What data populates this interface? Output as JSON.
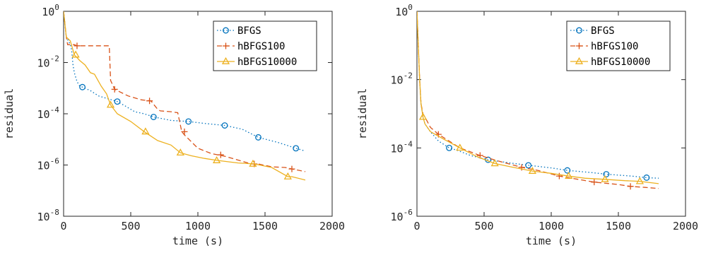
{
  "chart_data": [
    {
      "type": "line",
      "xlabel": "time (s)",
      "ylabel": "residual",
      "xlim": [
        0,
        2000
      ],
      "ylim": [
        1e-08,
        1
      ],
      "yscale": "log",
      "xticks": [
        0,
        500,
        1000,
        1500,
        2000
      ],
      "xtick_labels": [
        "0",
        "500",
        "1000",
        "1500",
        "2000"
      ],
      "yticks": [
        {
          "base": "10",
          "exp": "-8",
          "value": 1e-08
        },
        {
          "base": "10",
          "exp": "-6",
          "value": 1e-06
        },
        {
          "base": "10",
          "exp": "-4",
          "value": 0.0001
        },
        {
          "base": "10",
          "exp": "-2",
          "value": 0.01
        },
        {
          "base": "10",
          "exp": "0",
          "value": 1
        }
      ],
      "grid": false,
      "legend_position": "top-right",
      "series": [
        {
          "name": "BFGS",
          "color": "#0072BD",
          "style": "dotted",
          "marker": "circle",
          "x": [
            0,
            20,
            50,
            60,
            70,
            80,
            100,
            120,
            140,
            200,
            260,
            320,
            400,
            460,
            530,
            600,
            670,
            800,
            930,
            1050,
            1200,
            1330,
            1450,
            1600,
            1730,
            1800
          ],
          "y": [
            1,
            0.1,
            0.05,
            0.03,
            0.008,
            0.004,
            0.0018,
            0.0012,
            0.0011,
            0.0008,
            0.0005,
            0.0004,
            0.0003,
            0.0002,
            0.00012,
            0.0001,
            7.5e-05,
            5.5e-05,
            5e-05,
            4.2e-05,
            3.5e-05,
            2.5e-05,
            1.2e-05,
            7.5e-06,
            4.5e-06,
            3.5e-06
          ],
          "marker_x": [
            140,
            400,
            670,
            930,
            1200,
            1450,
            1730
          ],
          "marker_y": [
            0.0011,
            0.0003,
            7.5e-05,
            5e-05,
            3.5e-05,
            1.2e-05,
            4.5e-06
          ]
        },
        {
          "name": "hBFGS100",
          "color": "#D95319",
          "style": "dashed",
          "marker": "plus",
          "x": [
            0,
            20,
            30,
            60,
            80,
            100,
            240,
            340,
            350,
            380,
            480,
            580,
            650,
            700,
            720,
            800,
            850,
            880,
            900,
            1000,
            1100,
            1200,
            1400,
            1450,
            1550,
            1650,
            1700,
            1800
          ],
          "y": [
            1,
            0.1,
            0.05,
            0.05,
            0.05,
            0.045,
            0.045,
            0.045,
            0.002,
            0.0009,
            0.0005,
            0.00035,
            0.00032,
            0.00015,
            0.00013,
            0.00012,
            0.00011,
            2e-05,
            1.5e-05,
            4.5e-06,
            2.8e-06,
            2.2e-06,
            1.1e-06,
            1.1e-06,
            8.5e-07,
            8e-07,
            7e-07,
            5.5e-07
          ],
          "marker_x": [
            100,
            380,
            640,
            900,
            1170,
            1420,
            1700
          ],
          "marker_y": [
            0.045,
            0.0009,
            0.00032,
            2e-05,
            2.5e-06,
            1.1e-06,
            7e-07
          ]
        },
        {
          "name": "hBFGS10000",
          "color": "#EDB120",
          "style": "solid",
          "marker": "triangle",
          "x": [
            0,
            20,
            50,
            80,
            120,
            160,
            200,
            230,
            280,
            320,
            350,
            400,
            500,
            600,
            700,
            800,
            870,
            950,
            1050,
            1150,
            1300,
            1420,
            1550,
            1670,
            1700,
            1800
          ],
          "y": [
            1,
            0.1,
            0.07,
            0.02,
            0.012,
            0.008,
            0.004,
            0.0035,
            0.0012,
            0.0006,
            0.00022,
            0.0001,
            5e-05,
            2e-05,
            9e-06,
            6e-06,
            3e-06,
            2.3e-06,
            1.8e-06,
            1.5e-06,
            1.2e-06,
            1.1e-06,
            8e-07,
            3.5e-07,
            3.5e-07,
            2.6e-07
          ],
          "marker_x": [
            90,
            350,
            610,
            870,
            1140,
            1410,
            1670
          ],
          "marker_y": [
            0.02,
            0.00022,
            2e-05,
            3e-06,
            1.5e-06,
            1.1e-06,
            3.5e-07
          ]
        }
      ]
    },
    {
      "type": "line",
      "xlabel": "time (s)",
      "ylabel": "residual",
      "xlim": [
        0,
        2000
      ],
      "ylim": [
        1e-06,
        1
      ],
      "yscale": "log",
      "xticks": [
        0,
        500,
        1000,
        1500,
        2000
      ],
      "xtick_labels": [
        "0",
        "500",
        "1000",
        "1500",
        "2000"
      ],
      "yticks": [
        {
          "base": "10",
          "exp": "-6",
          "value": 1e-06
        },
        {
          "base": "10",
          "exp": "-4",
          "value": 0.0001
        },
        {
          "base": "10",
          "exp": "-2",
          "value": 0.01
        },
        {
          "base": "10",
          "exp": "0",
          "value": 1
        }
      ],
      "grid": false,
      "legend_position": "top-right",
      "series": [
        {
          "name": "BFGS",
          "color": "#0072BD",
          "style": "dotted",
          "marker": "circle",
          "x": [
            0,
            10,
            20,
            30,
            45,
            60,
            100,
            160,
            240,
            300,
            400,
            530,
            700,
            830,
            1000,
            1120,
            1300,
            1410,
            1600,
            1710,
            1800
          ],
          "y": [
            1,
            0.1,
            0.01,
            0.002,
            0.0008,
            0.0005,
            0.0003,
            0.00016,
            0.0001,
            8.5e-05,
            6e-05,
            4.5e-05,
            3.6e-05,
            3.1e-05,
            2.6e-05,
            2.2e-05,
            1.9e-05,
            1.7e-05,
            1.5e-05,
            1.35e-05,
            1.3e-05
          ],
          "marker_x": [
            240,
            530,
            830,
            1120,
            1410,
            1710
          ],
          "marker_y": [
            0.0001,
            4.5e-05,
            3.1e-05,
            2.2e-05,
            1.7e-05,
            1.35e-05
          ]
        },
        {
          "name": "hBFGS100",
          "color": "#D95319",
          "style": "dashed",
          "marker": "plus",
          "x": [
            0,
            10,
            20,
            30,
            45,
            60,
            100,
            160,
            250,
            320,
            470,
            600,
            780,
            900,
            1060,
            1200,
            1320,
            1500,
            1590,
            1700,
            1800
          ],
          "y": [
            1,
            0.1,
            0.01,
            0.002,
            0.001,
            0.0008,
            0.0004,
            0.00025,
            0.00015,
            0.0001,
            6e-05,
            4.2e-05,
            2.7e-05,
            2.2e-05,
            1.5e-05,
            1.2e-05,
            1e-05,
            8.5e-06,
            7.5e-06,
            7e-06,
            6.5e-06
          ],
          "marker_x": [
            160,
            470,
            780,
            1060,
            1320,
            1590
          ],
          "marker_y": [
            0.00025,
            6e-05,
            2.7e-05,
            1.5e-05,
            1e-05,
            7.5e-06
          ]
        },
        {
          "name": "hBFGS10000",
          "color": "#EDB120",
          "style": "solid",
          "marker": "triangle",
          "x": [
            0,
            10,
            20,
            30,
            45,
            60,
            100,
            200,
            320,
            450,
            580,
            700,
            860,
            1000,
            1130,
            1250,
            1400,
            1550,
            1660,
            1800
          ],
          "y": [
            1,
            0.1,
            0.01,
            0.002,
            0.0008,
            0.0005,
            0.0003,
            0.00018,
            0.0001,
            5.5e-05,
            3.5e-05,
            2.8e-05,
            2.1e-05,
            1.8e-05,
            1.5e-05,
            1.3e-05,
            1.2e-05,
            1.1e-05,
            1.05e-05,
            9e-06
          ],
          "marker_x": [
            45,
            320,
            580,
            860,
            1130,
            1400,
            1660
          ],
          "marker_y": [
            0.0008,
            0.0001,
            3.5e-05,
            2.1e-05,
            1.5e-05,
            1.2e-05,
            1.05e-05
          ]
        }
      ]
    }
  ]
}
